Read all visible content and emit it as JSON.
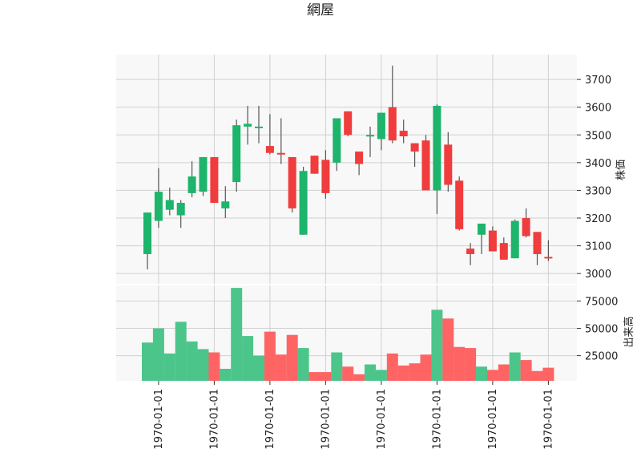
{
  "chart_data": {
    "type": "candlestick",
    "title": "網屋",
    "price_axis": {
      "label": "株価",
      "ylim": [
        2960,
        3790
      ],
      "ticks": [
        3000,
        3100,
        3200,
        3300,
        3400,
        3500,
        3600,
        3700
      ],
      "tick_labels": [
        "3000",
        "3100",
        "3200",
        "3300",
        "3400",
        "3500",
        "3600",
        "3700"
      ]
    },
    "volume_axis": {
      "label": "出来高",
      "ylim": [
        2000,
        90000
      ],
      "ticks": [
        25000,
        50000,
        75000
      ],
      "tick_labels": [
        "25000",
        "50000",
        "75000"
      ]
    },
    "x_tick_labels": [
      "1970-01-01",
      "1970-01-01",
      "1970-01-01",
      "1970-01-01",
      "1970-01-01",
      "1970-01-01",
      "1970-01-01",
      "1970-01-01"
    ],
    "x_tick_positions": [
      1,
      6,
      11,
      16,
      21,
      26,
      31,
      36
    ],
    "grid": true,
    "colors": {
      "up": "#1db46b",
      "down": "#f03c3c",
      "up_volume": "#4cc58b",
      "down_volume": "#ff6464",
      "wick": "#555555",
      "panel_bg": "#f8f8f8",
      "grid": "#d0d0d0"
    },
    "candles": [
      {
        "open": 3070,
        "high": 3220,
        "low": 3015,
        "close": 3220,
        "volume": 37000
      },
      {
        "open": 3190,
        "high": 3380,
        "low": 3165,
        "close": 3295,
        "volume": 50000
      },
      {
        "open": 3230,
        "high": 3310,
        "low": 3210,
        "close": 3265,
        "volume": 27000
      },
      {
        "open": 3210,
        "high": 3265,
        "low": 3165,
        "close": 3255,
        "volume": 56000
      },
      {
        "open": 3290,
        "high": 3405,
        "low": 3275,
        "close": 3350,
        "volume": 38000
      },
      {
        "open": 3295,
        "high": 3420,
        "low": 3280,
        "close": 3420,
        "volume": 31000
      },
      {
        "open": 3420,
        "high": 3420,
        "low": 3255,
        "close": 3255,
        "volume": 28000
      },
      {
        "open": 3235,
        "high": 3315,
        "low": 3200,
        "close": 3260,
        "volume": 13000
      },
      {
        "open": 3330,
        "high": 3555,
        "low": 3295,
        "close": 3535,
        "volume": 87000
      },
      {
        "open": 3530,
        "high": 3605,
        "low": 3465,
        "close": 3540,
        "volume": 43000
      },
      {
        "open": 3525,
        "high": 3605,
        "low": 3470,
        "close": 3530,
        "volume": 25000
      },
      {
        "open": 3460,
        "high": 3575,
        "low": 3430,
        "close": 3435,
        "volume": 47000
      },
      {
        "open": 3435,
        "high": 3560,
        "low": 3395,
        "close": 3430,
        "volume": 26000
      },
      {
        "open": 3420,
        "high": 3420,
        "low": 3220,
        "close": 3235,
        "volume": 44000
      },
      {
        "open": 3140,
        "high": 3385,
        "low": 3140,
        "close": 3370,
        "volume": 32000
      },
      {
        "open": 3425,
        "high": 3425,
        "low": 3360,
        "close": 3360,
        "volume": 10000
      },
      {
        "open": 3410,
        "high": 3445,
        "low": 3270,
        "close": 3290,
        "volume": 10000
      },
      {
        "open": 3400,
        "high": 3560,
        "low": 3370,
        "close": 3560,
        "volume": 28000
      },
      {
        "open": 3585,
        "high": 3585,
        "low": 3495,
        "close": 3500,
        "volume": 15000
      },
      {
        "open": 3440,
        "high": 3440,
        "low": 3355,
        "close": 3395,
        "volume": 8000
      },
      {
        "open": 3495,
        "high": 3530,
        "low": 3420,
        "close": 3500,
        "volume": 17000
      },
      {
        "open": 3485,
        "high": 3580,
        "low": 3445,
        "close": 3580,
        "volume": 12000
      },
      {
        "open": 3600,
        "high": 3750,
        "low": 3470,
        "close": 3480,
        "volume": 27000
      },
      {
        "open": 3515,
        "high": 3555,
        "low": 3470,
        "close": 3495,
        "volume": 16000
      },
      {
        "open": 3470,
        "high": 3470,
        "low": 3385,
        "close": 3440,
        "volume": 18000
      },
      {
        "open": 3480,
        "high": 3500,
        "low": 3300,
        "close": 3300,
        "volume": 26000
      },
      {
        "open": 3300,
        "high": 3610,
        "low": 3215,
        "close": 3605,
        "volume": 67000
      },
      {
        "open": 3465,
        "high": 3510,
        "low": 3295,
        "close": 3320,
        "volume": 59000
      },
      {
        "open": 3335,
        "high": 3350,
        "low": 3155,
        "close": 3160,
        "volume": 33000
      },
      {
        "open": 3090,
        "high": 3110,
        "low": 3030,
        "close": 3070,
        "volume": 32000
      },
      {
        "open": 3140,
        "high": 3180,
        "low": 3070,
        "close": 3180,
        "volume": 15000
      },
      {
        "open": 3155,
        "high": 3170,
        "low": 3080,
        "close": 3080,
        "volume": 12000
      },
      {
        "open": 3110,
        "high": 3130,
        "low": 3050,
        "close": 3050,
        "volume": 17000
      },
      {
        "open": 3055,
        "high": 3195,
        "low": 3055,
        "close": 3190,
        "volume": 28000
      },
      {
        "open": 3200,
        "high": 3235,
        "low": 3130,
        "close": 3135,
        "volume": 21000
      },
      {
        "open": 3150,
        "high": 3150,
        "low": 3030,
        "close": 3070,
        "volume": 11000
      },
      {
        "open": 3060,
        "high": 3120,
        "low": 3045,
        "close": 3055,
        "volume": 14000
      }
    ]
  }
}
